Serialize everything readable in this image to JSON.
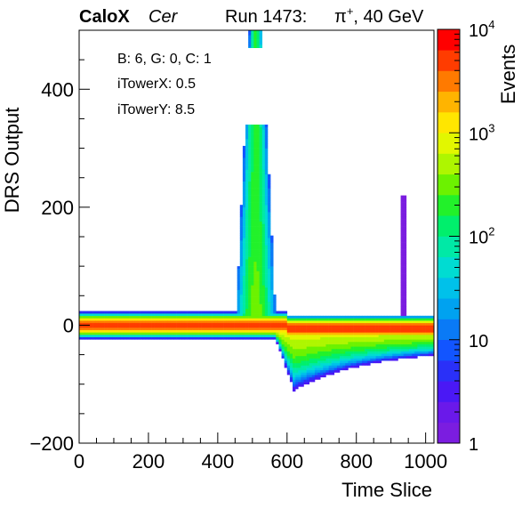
{
  "header": {
    "experiment": "CaloX",
    "detector": "Cer",
    "run_label": "Run 1473:",
    "particle": "π",
    "charge": "+",
    "energy_label": ", 40 GeV"
  },
  "info_box": {
    "lines": [
      "B: 6, G: 0, C: 1",
      "iTowerX: 0.5",
      "iTowerY: 8.5"
    ]
  },
  "chart_data": {
    "type": "heatmap",
    "title": "",
    "xlabel": "Time Slice",
    "ylabel": "DRS Output",
    "zlabel": "Events",
    "xlim": [
      0,
      1024
    ],
    "ylim": [
      -200,
      500
    ],
    "zlim": [
      1,
      10000
    ],
    "z_log_scale": true,
    "x_ticks": [
      0,
      200,
      400,
      600,
      800,
      1000
    ],
    "x_tick_labels": [
      "0",
      "200",
      "400",
      "600",
      "800",
      "1000"
    ],
    "y_ticks": [
      -200,
      0,
      200,
      400
    ],
    "y_tick_labels": [
      "−200",
      "0",
      "200",
      "400"
    ],
    "z_tick_labels": [
      {
        "value": 1,
        "base": "1",
        "exp": ""
      },
      {
        "value": 10,
        "base": "10",
        "exp": ""
      },
      {
        "value": 100,
        "base": "10",
        "exp": "2"
      },
      {
        "value": 1000,
        "base": "10",
        "exp": "3"
      },
      {
        "value": 10000,
        "base": "10",
        "exp": "4"
      }
    ],
    "features": {
      "baseline": {
        "x_range": [
          0,
          1024
        ],
        "y_center": 0,
        "y_halfwidth": 22,
        "peak_level": 6000,
        "after_pulse_y_center": -5
      },
      "pulse": {
        "x_center": 510,
        "x_start": 440,
        "x_end": 620,
        "peak_y": 500,
        "peak_level": 300
      },
      "undershoot": {
        "x_start": 560,
        "x_end": 1024,
        "min_y": -110,
        "min_x": 620,
        "tail_y": -40
      },
      "afterpulse": {
        "x_center": 935,
        "peak_y": 220
      }
    },
    "grid": false,
    "legend": "none"
  },
  "colors": {
    "palette": [
      "#7b1de0",
      "#6a19ea",
      "#4a18f5",
      "#2a30f8",
      "#1255ff",
      "#0a7af6",
      "#00a2f0",
      "#00c1ea",
      "#00dcd2",
      "#00e9a6",
      "#00ef6c",
      "#22f12a",
      "#6cf200",
      "#aef600",
      "#e2f700",
      "#ffe600",
      "#ffb400",
      "#ff7a00",
      "#ff3c00",
      "#ff0000"
    ]
  }
}
